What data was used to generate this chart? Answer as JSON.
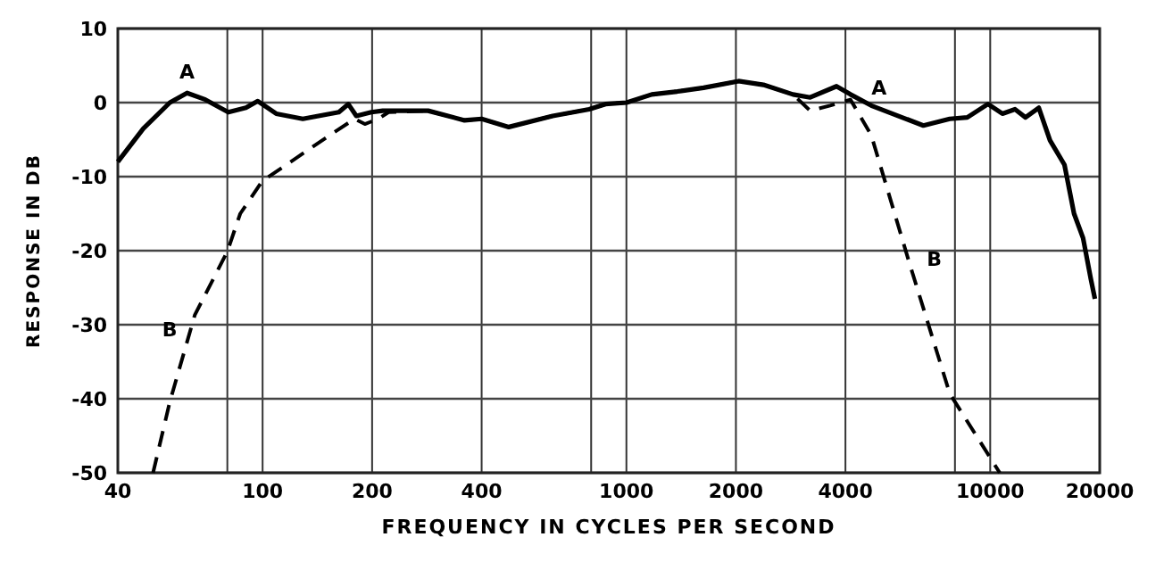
{
  "chart_data": {
    "type": "line",
    "xlabel": "FREQUENCY IN CYCLES PER SECOND",
    "ylabel": "RESPONSE IN DB",
    "log": "x",
    "grid": true,
    "xlim": [
      40,
      20000
    ],
    "xticks": [
      40,
      {
        "value": 80,
        "label": null
      },
      100,
      200,
      400,
      {
        "value": 800,
        "label": null
      },
      1000,
      2000,
      4000,
      {
        "value": 8000,
        "label": null
      },
      10000,
      20000
    ],
    "ylim": [
      -50,
      10
    ],
    "yticks": [
      -50,
      -40,
      -30,
      -20,
      -10,
      0,
      10
    ],
    "series": [
      {
        "name": "A",
        "color": "#000000",
        "line_style": "solid",
        "x": [
          40,
          47,
          55.6,
          62,
          69.6,
          80.5,
          90,
          97,
          109,
          129,
          162,
          172,
          181,
          199,
          214,
          285,
          359,
          400,
          475,
          627,
          790,
          876,
          1001,
          1174,
          1380,
          1630,
          2034,
          2380,
          2870,
          3200,
          3780,
          4130,
          4710,
          6550,
          7740,
          8650,
          9860,
          10800,
          11700,
          12500,
          13600,
          14600,
          16000,
          17000,
          18000,
          18900,
          19400
        ],
        "values": [
          -8,
          -3.5,
          0,
          1.3,
          0.4,
          -1.3,
          -0.7,
          0.2,
          -1.5,
          -2.2,
          -1.3,
          -0.2,
          -1.8,
          -1.3,
          -1.1,
          -1.1,
          -2.4,
          -2.2,
          -3.3,
          -1.8,
          -0.9,
          -0.2,
          0,
          1.1,
          1.5,
          2,
          2.9,
          2.4,
          1.1,
          0.7,
          2.2,
          1.1,
          -0.4,
          -3.1,
          -2.2,
          -2,
          -0.2,
          -1.5,
          -0.9,
          -2,
          -0.7,
          -5.1,
          -8.4,
          -15,
          -18.3,
          -23.8,
          -26.5
        ]
      },
      {
        "name": "B",
        "color": "#000000",
        "line_style": "dashed",
        "x": [
          50,
          55.6,
          65.1,
          80,
          86.8,
          99.8,
          122,
          153,
          179,
          191,
          208,
          222,
          285,
          359,
          400,
          475,
          627,
          790,
          876,
          1001,
          1174,
          1380,
          1630,
          2034,
          2380,
          2870,
          3200,
          3630,
          4130,
          4710,
          5990,
          7740,
          10620
        ],
        "values": [
          -50,
          -40.4,
          -28.7,
          -20.1,
          -15,
          -10.6,
          -7.7,
          -4.4,
          -2.2,
          -2.9,
          -2.2,
          -1.3,
          -1.1,
          -2.4,
          -2.2,
          -3.3,
          -1.8,
          -0.9,
          -0.2,
          0,
          1.1,
          1.5,
          2,
          2.9,
          2.4,
          1.1,
          -1.1,
          -0.4,
          0.4,
          -4.4,
          -21.6,
          -39.3,
          -50
        ]
      }
    ]
  }
}
